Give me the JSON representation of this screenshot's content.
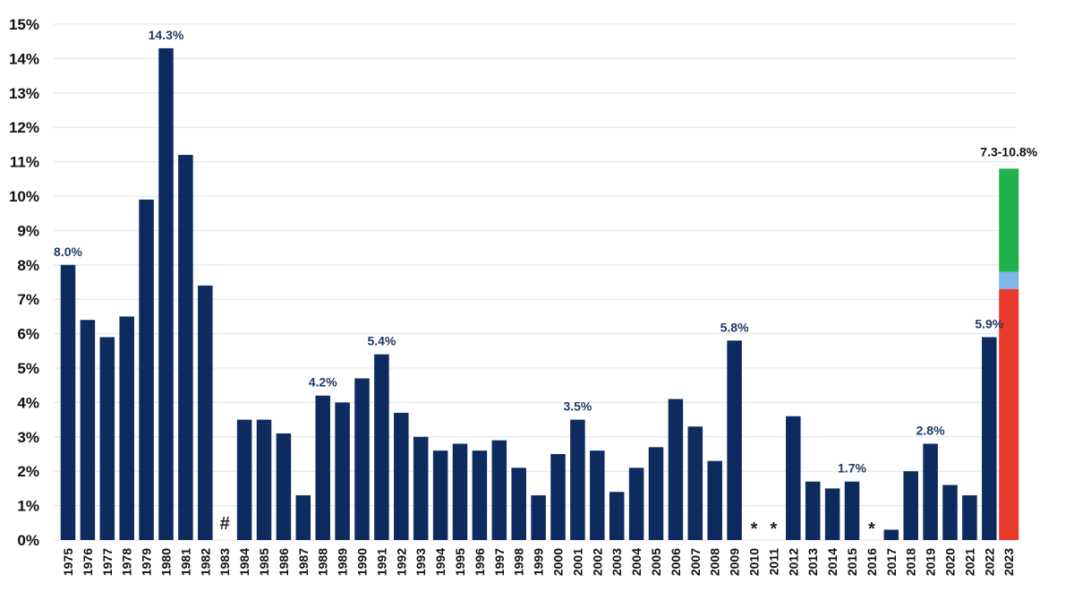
{
  "chart_data": {
    "type": "bar",
    "title": "",
    "xlabel": "",
    "ylabel": "",
    "ylim": [
      0,
      15
    ],
    "y_ticks": [
      0,
      1,
      2,
      3,
      4,
      5,
      6,
      7,
      8,
      9,
      10,
      11,
      12,
      13,
      14,
      15
    ],
    "y_tick_format": "percent",
    "grid": "horizontal",
    "bar_color": "#0d2b5e",
    "categories": [
      "1975",
      "1976",
      "1977",
      "1978",
      "1979",
      "1980",
      "1981",
      "1982",
      "1983",
      "1984",
      "1985",
      "1986",
      "1987",
      "1988",
      "1989",
      "1990",
      "1991",
      "1992",
      "1993",
      "1994",
      "1995",
      "1996",
      "1997",
      "1998",
      "1999",
      "2000",
      "2001",
      "2002",
      "2003",
      "2004",
      "2005",
      "2006",
      "2007",
      "2008",
      "2009",
      "2010",
      "2011",
      "2012",
      "2013",
      "2014",
      "2015",
      "2016",
      "2017",
      "2018",
      "2019",
      "2020",
      "2021",
      "2022",
      "2023"
    ],
    "values": [
      8.0,
      6.4,
      5.9,
      6.5,
      9.9,
      14.3,
      11.2,
      7.4,
      0,
      3.5,
      3.5,
      3.1,
      1.3,
      4.2,
      4.0,
      4.7,
      5.4,
      3.7,
      3.0,
      2.6,
      2.8,
      2.6,
      2.9,
      2.1,
      1.3,
      2.5,
      3.5,
      2.6,
      1.4,
      2.1,
      2.7,
      4.1,
      3.3,
      2.3,
      5.8,
      0,
      0,
      3.6,
      1.7,
      1.5,
      1.7,
      0,
      0.3,
      2.0,
      2.8,
      1.6,
      1.3,
      5.9,
      0
    ],
    "data_labels": [
      {
        "category": "1975",
        "text": "8.0%"
      },
      {
        "category": "1980",
        "text": "14.3%"
      },
      {
        "category": "1988",
        "text": "4.2%"
      },
      {
        "category": "1991",
        "text": "5.4%"
      },
      {
        "category": "2001",
        "text": "3.5%"
      },
      {
        "category": "2009",
        "text": "5.8%"
      },
      {
        "category": "2015",
        "text": "1.7%"
      },
      {
        "category": "2019",
        "text": "2.8%"
      },
      {
        "category": "2022",
        "text": "5.9%"
      }
    ],
    "markers": [
      {
        "category": "1983",
        "text": "#"
      },
      {
        "category": "2010",
        "text": "*"
      },
      {
        "category": "2011",
        "text": "*"
      },
      {
        "category": "2016",
        "text": "*"
      }
    ],
    "stacked_range": {
      "category": "2023",
      "label": "7.3-10.8%",
      "segments": [
        {
          "from": 0,
          "to": 7.3,
          "color": "#e8392c"
        },
        {
          "from": 7.3,
          "to": 7.8,
          "color": "#7fb6e8"
        },
        {
          "from": 7.8,
          "to": 10.8,
          "color": "#22b24c"
        }
      ]
    }
  }
}
